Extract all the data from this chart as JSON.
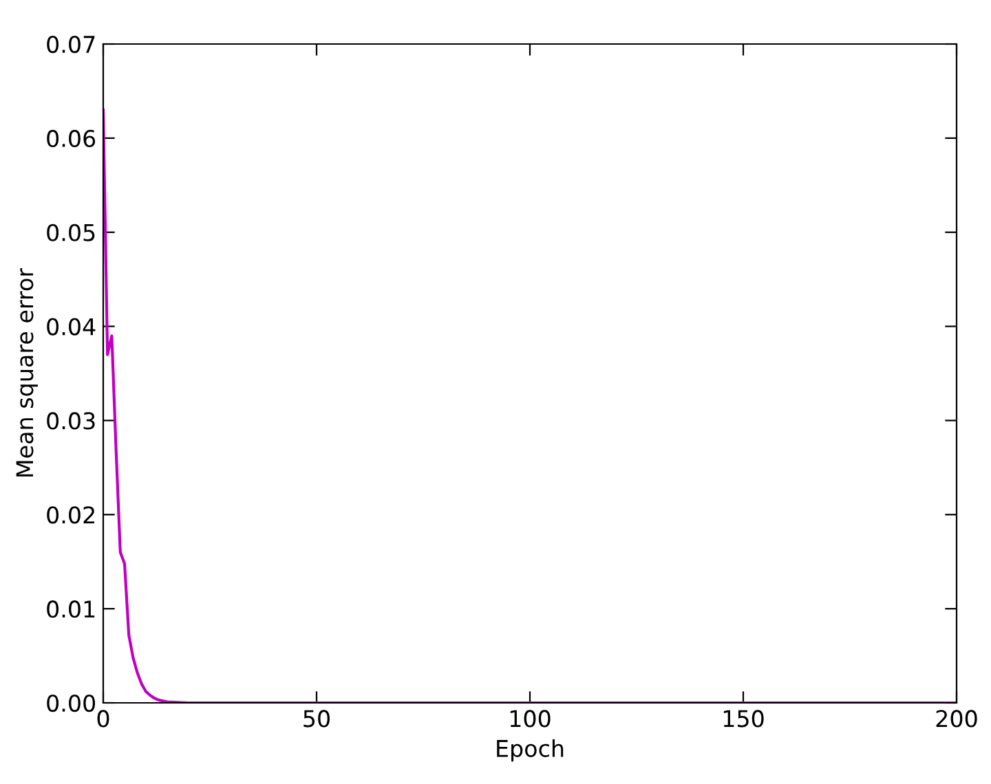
{
  "chart_data": {
    "type": "line",
    "xlabel": "Epoch",
    "ylabel": "Mean square error",
    "x": [
      0,
      1,
      2,
      3,
      4,
      5,
      6,
      7,
      8,
      9,
      10,
      11,
      12,
      13,
      14,
      15,
      20,
      30,
      50,
      100,
      150,
      200
    ],
    "series": [
      {
        "color": "#bf00bf",
        "values": [
          0.063,
          0.037,
          0.039,
          0.027,
          0.016,
          0.0148,
          0.0072,
          0.0048,
          0.0032,
          0.002,
          0.0012,
          0.0008,
          0.0005,
          0.0003,
          0.0002,
          0.0001,
          0,
          0,
          0,
          0,
          0,
          0
        ]
      }
    ],
    "xlim": [
      0,
      200
    ],
    "xticks": [
      0,
      50,
      100,
      150,
      200
    ],
    "ylim": [
      0,
      0.07
    ],
    "yticks": [
      {
        "value": 0,
        "label": "0.00"
      },
      {
        "value": 0.01,
        "label": "0.01"
      },
      {
        "value": 0.02,
        "label": "0.02"
      },
      {
        "value": 0.03,
        "label": "0.03"
      },
      {
        "value": 0.04,
        "label": "0.04"
      },
      {
        "value": 0.05,
        "label": "0.05"
      },
      {
        "value": 0.06,
        "label": "0.06"
      },
      {
        "value": 0.07,
        "label": "0.07"
      }
    ],
    "grid": false
  }
}
